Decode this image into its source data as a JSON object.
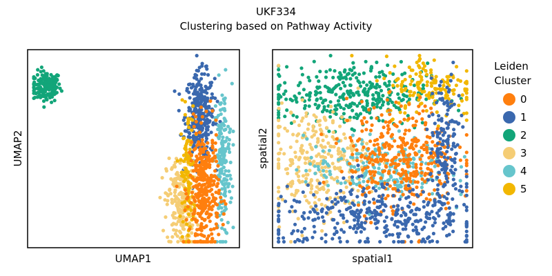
{
  "figure": {
    "title_line1": "UKF334",
    "title_line2": "Clustering based on Pathway Activity"
  },
  "colors": {
    "0": "#ff7f0e",
    "1": "#3a68ae",
    "2": "#12a579",
    "3": "#f5cd75",
    "4": "#66c5cc",
    "5": "#f2b701"
  },
  "legend": {
    "title_line1": "Leiden",
    "title_line2": "Cluster",
    "placement": "right-outside",
    "entries": [
      "0",
      "1",
      "2",
      "3",
      "4",
      "5"
    ]
  },
  "chart_data": [
    {
      "type": "scatter",
      "name": "umap-panel",
      "xlabel": "UMAP1",
      "ylabel": "UMAP2",
      "xticks": "none",
      "yticks": "none",
      "xlim": [
        0,
        100
      ],
      "ylim": [
        0,
        100
      ],
      "grid": false,
      "clusters": [
        {
          "label": "2",
          "center": [
            8,
            82
          ],
          "spread": [
            3.5,
            4
          ],
          "count": 170
        },
        {
          "label": "1",
          "center": [
            82,
            67
          ],
          "spread": [
            3.5,
            11
          ],
          "count": 320
        },
        {
          "label": "4",
          "center": [
            93,
            43
          ],
          "spread": [
            2.2,
            20
          ],
          "count": 180
        },
        {
          "label": "3",
          "center": [
            73,
            22
          ],
          "spread": [
            3.5,
            12
          ],
          "count": 240
        },
        {
          "label": "5",
          "center": [
            76,
            37
          ],
          "spread": [
            1.6,
            17
          ],
          "count": 110
        },
        {
          "label": "0",
          "center": [
            84,
            28
          ],
          "spread": [
            3.5,
            16
          ],
          "count": 360
        }
      ]
    },
    {
      "type": "scatter",
      "name": "spatial-panel",
      "xlabel": "spatial1",
      "ylabel": "spatial2",
      "xticks": "none",
      "yticks": "none",
      "xlim": [
        0,
        100
      ],
      "ylim": [
        0,
        100
      ],
      "grid": false,
      "clusters": [
        {
          "label": "2",
          "center": [
            38,
            78
          ],
          "spread": [
            20,
            8
          ],
          "count": 340
        },
        {
          "label": "5",
          "center": [
            80,
            82
          ],
          "spread": [
            12,
            8
          ],
          "count": 160
        },
        {
          "label": "3",
          "center": [
            22,
            43
          ],
          "spread": [
            13,
            14
          ],
          "count": 300
        },
        {
          "label": "4",
          "center": [
            52,
            40
          ],
          "spread": [
            18,
            8
          ],
          "count": 220
        },
        {
          "label": "0",
          "center": [
            65,
            45
          ],
          "spread": [
            14,
            14
          ],
          "count": 380
        },
        {
          "label": "1",
          "center": [
            55,
            15
          ],
          "spread": [
            30,
            8
          ],
          "count": 380
        },
        {
          "label": "1",
          "center": [
            87,
            52
          ],
          "spread": [
            4,
            18
          ],
          "count": 150
        }
      ]
    }
  ]
}
